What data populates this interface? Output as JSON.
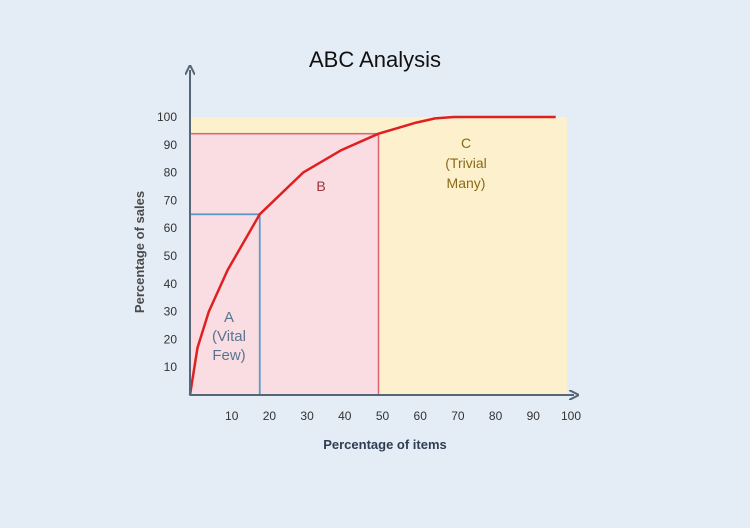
{
  "chart_data": {
    "type": "area",
    "title": "ABC Analysis",
    "xlabel": "Percentage of items",
    "ylabel": "Percentage of sales",
    "x_ticks": [
      10,
      20,
      30,
      40,
      50,
      60,
      70,
      80,
      90,
      100
    ],
    "y_ticks": [
      10,
      20,
      30,
      40,
      50,
      60,
      70,
      80,
      90,
      100
    ],
    "xlim": [
      0,
      100
    ],
    "ylim": [
      0,
      100
    ],
    "grid": false,
    "colors": {
      "curve": "#e02020",
      "zone_a_border": "#5a9ac8",
      "zone_b_fill": "#f9dde2",
      "zone_b_border": "#e06070",
      "zone_c_fill": "#fdf0cc",
      "axis": "#556677"
    },
    "zones": [
      {
        "id": "A",
        "x_end": 18.5,
        "y_end": 65,
        "label": [
          "A",
          "(Vital",
          "Few)"
        ]
      },
      {
        "id": "B",
        "x_end": 50,
        "y_end": 94,
        "label": [
          "B"
        ]
      },
      {
        "id": "C",
        "x_end": 100,
        "y_end": 100,
        "label": [
          "C",
          "(Trivial",
          "Many)"
        ]
      }
    ],
    "series": [
      {
        "x": [
          0,
          2,
          5,
          10,
          18.5,
          30,
          40,
          50,
          60,
          65,
          70,
          80,
          97
        ],
        "values": [
          0,
          17,
          30,
          45,
          65,
          80,
          88,
          94,
          98,
          99.5,
          100,
          100,
          100
        ]
      }
    ]
  }
}
